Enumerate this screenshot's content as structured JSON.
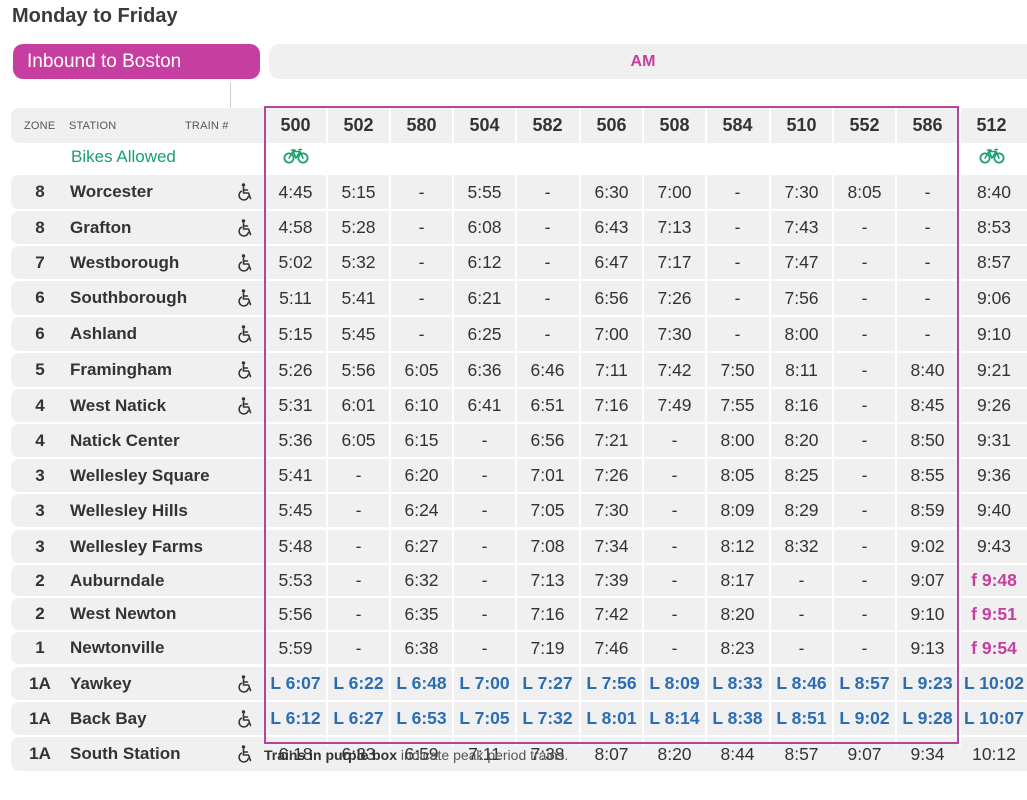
{
  "title": "Monday to Friday",
  "direction": "Inbound to Boston",
  "period": "AM",
  "headers": {
    "zone": "ZONE",
    "station": "STATION",
    "train": "TRAIN #",
    "bikes": "Bikes Allowed"
  },
  "trains": [
    "500",
    "502",
    "580",
    "504",
    "582",
    "506",
    "508",
    "584",
    "510",
    "552",
    "586",
    "512"
  ],
  "bikes": [
    true,
    false,
    false,
    false,
    false,
    false,
    false,
    false,
    false,
    false,
    false,
    true
  ],
  "rows": [
    {
      "zone": "8",
      "station": "Worcester",
      "accessible": true,
      "times": [
        "4:45",
        "5:15",
        "-",
        "5:55",
        "-",
        "6:30",
        "7:00",
        "-",
        "7:30",
        "8:05",
        "-",
        "8:40"
      ]
    },
    {
      "zone": "8",
      "station": "Grafton",
      "accessible": true,
      "times": [
        "4:58",
        "5:28",
        "-",
        "6:08",
        "-",
        "6:43",
        "7:13",
        "-",
        "7:43",
        "-",
        "-",
        "8:53"
      ]
    },
    {
      "zone": "7",
      "station": "Westborough",
      "accessible": true,
      "times": [
        "5:02",
        "5:32",
        "-",
        "6:12",
        "-",
        "6:47",
        "7:17",
        "-",
        "7:47",
        "-",
        "-",
        "8:57"
      ]
    },
    {
      "zone": "6",
      "station": "Southborough",
      "accessible": true,
      "times": [
        "5:11",
        "5:41",
        "-",
        "6:21",
        "-",
        "6:56",
        "7:26",
        "-",
        "7:56",
        "-",
        "-",
        "9:06"
      ]
    },
    {
      "zone": "6",
      "station": "Ashland",
      "accessible": true,
      "times": [
        "5:15",
        "5:45",
        "-",
        "6:25",
        "-",
        "7:00",
        "7:30",
        "-",
        "8:00",
        "-",
        "-",
        "9:10"
      ]
    },
    {
      "zone": "5",
      "station": "Framingham",
      "accessible": true,
      "times": [
        "5:26",
        "5:56",
        "6:05",
        "6:36",
        "6:46",
        "7:11",
        "7:42",
        "7:50",
        "8:11",
        "-",
        "8:40",
        "9:21"
      ]
    },
    {
      "zone": "4",
      "station": "West Natick",
      "accessible": true,
      "times": [
        "5:31",
        "6:01",
        "6:10",
        "6:41",
        "6:51",
        "7:16",
        "7:49",
        "7:55",
        "8:16",
        "-",
        "8:45",
        "9:26"
      ]
    },
    {
      "zone": "4",
      "station": "Natick Center",
      "accessible": false,
      "times": [
        "5:36",
        "6:05",
        "6:15",
        "-",
        "6:56",
        "7:21",
        "-",
        "8:00",
        "8:20",
        "-",
        "8:50",
        "9:31"
      ]
    },
    {
      "zone": "3",
      "station": "Wellesley Square",
      "accessible": false,
      "times": [
        "5:41",
        "-",
        "6:20",
        "-",
        "7:01",
        "7:26",
        "-",
        "8:05",
        "8:25",
        "-",
        "8:55",
        "9:36"
      ]
    },
    {
      "zone": "3",
      "station": "Wellesley Hills",
      "accessible": false,
      "times": [
        "5:45",
        "-",
        "6:24",
        "-",
        "7:05",
        "7:30",
        "-",
        "8:09",
        "8:29",
        "-",
        "8:59",
        "9:40"
      ]
    },
    {
      "zone": "3",
      "station": "Wellesley Farms",
      "accessible": false,
      "times": [
        "5:48",
        "-",
        "6:27",
        "-",
        "7:08",
        "7:34",
        "-",
        "8:12",
        "8:32",
        "-",
        "9:02",
        "9:43"
      ]
    },
    {
      "zone": "2",
      "station": "Auburndale",
      "accessible": false,
      "times": [
        "5:53",
        "-",
        "6:32",
        "-",
        "7:13",
        "7:39",
        "-",
        "8:17",
        "-",
        "-",
        "9:07",
        "f 9:48"
      ]
    },
    {
      "zone": "2",
      "station": "West Newton",
      "accessible": false,
      "times": [
        "5:56",
        "-",
        "6:35",
        "-",
        "7:16",
        "7:42",
        "-",
        "8:20",
        "-",
        "-",
        "9:10",
        "f 9:51"
      ]
    },
    {
      "zone": "1",
      "station": "Newtonville",
      "accessible": false,
      "times": [
        "5:59",
        "-",
        "6:38",
        "-",
        "7:19",
        "7:46",
        "-",
        "8:23",
        "-",
        "-",
        "9:13",
        "f 9:54"
      ]
    },
    {
      "zone": "1A",
      "station": "Yawkey",
      "accessible": true,
      "times": [
        "L 6:07",
        "L 6:22",
        "L 6:48",
        "L 7:00",
        "L 7:27",
        "L 7:56",
        "L 8:09",
        "L 8:33",
        "L 8:46",
        "L 8:57",
        "L 9:23",
        "L 10:02"
      ]
    },
    {
      "zone": "1A",
      "station": "Back Bay",
      "accessible": true,
      "times": [
        "L 6:12",
        "L 6:27",
        "L 6:53",
        "L 7:05",
        "L 7:32",
        "L 8:01",
        "L 8:14",
        "L 8:38",
        "L 8:51",
        "L 9:02",
        "L 9:28",
        "L 10:07"
      ]
    },
    {
      "zone": "1A",
      "station": "South Station",
      "accessible": true,
      "times": [
        "6:18",
        "6:33",
        "6:59",
        "7:11",
        "7:38",
        "8:07",
        "8:20",
        "8:44",
        "8:57",
        "9:07",
        "9:34",
        "10:12"
      ]
    }
  ],
  "footnote": {
    "bold": "Trains in purple box",
    "rest": " indicate peak period trains."
  },
  "colors": {
    "accent": "#c53ea0",
    "peak_box": "#b0479d",
    "bike": "#1aa06c",
    "stop_L": "#2a6db3",
    "row_bg": "#f0f0f0"
  },
  "icons": {
    "bike": "bicycle-icon",
    "accessible": "wheelchair-icon"
  }
}
